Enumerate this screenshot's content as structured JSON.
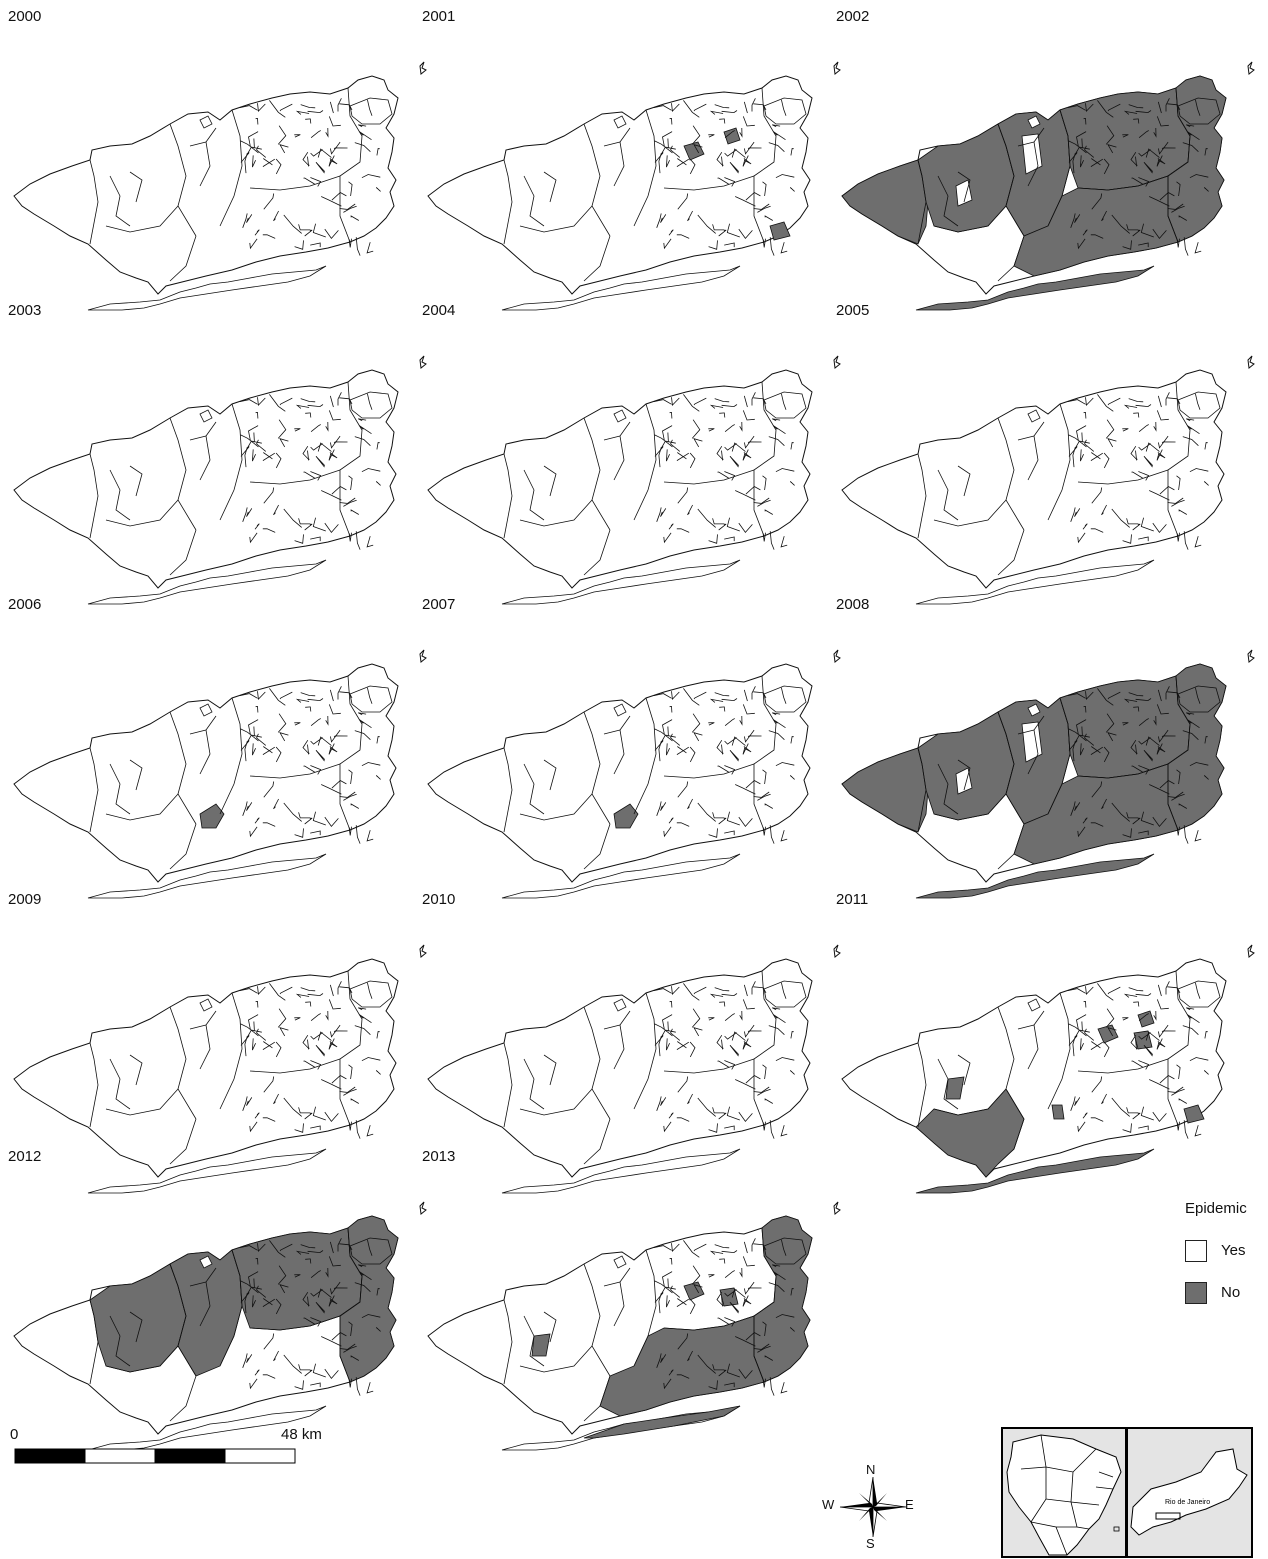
{
  "maps": [
    {
      "year": "2000",
      "epidemic_no_fill": "none"
    },
    {
      "year": "2001",
      "epidemic_no_fill": "few"
    },
    {
      "year": "2002",
      "epidemic_no_fill": "most"
    },
    {
      "year": "2003",
      "epidemic_no_fill": "none"
    },
    {
      "year": "2004",
      "epidemic_no_fill": "none"
    },
    {
      "year": "2005",
      "epidemic_no_fill": "none"
    },
    {
      "year": "2006",
      "epidemic_no_fill": "one"
    },
    {
      "year": "2007",
      "epidemic_no_fill": "one"
    },
    {
      "year": "2008",
      "epidemic_no_fill": "most"
    },
    {
      "year": "2009",
      "epidemic_no_fill": "none"
    },
    {
      "year": "2010",
      "epidemic_no_fill": "none"
    },
    {
      "year": "2011",
      "epidemic_no_fill": "some"
    },
    {
      "year": "2012",
      "epidemic_no_fill": "north"
    },
    {
      "year": "2013",
      "epidemic_no_fill": "east"
    }
  ],
  "legend": {
    "title": "Epidemic",
    "items": [
      {
        "label": "Yes",
        "color": "#ffffff"
      },
      {
        "label": "No",
        "color": "#6e6e6e"
      }
    ]
  },
  "scale_bar": {
    "start_label": "0",
    "end_label": "48 km"
  },
  "compass": {
    "n": "N",
    "s": "S",
    "e": "E",
    "w": "W"
  },
  "inset": {
    "city_label": "Rio de Janeiro"
  },
  "colors": {
    "no": "#6e6e6e",
    "yes": "#ffffff",
    "stroke": "#111111",
    "inset_bg": "#e4e4e4"
  }
}
